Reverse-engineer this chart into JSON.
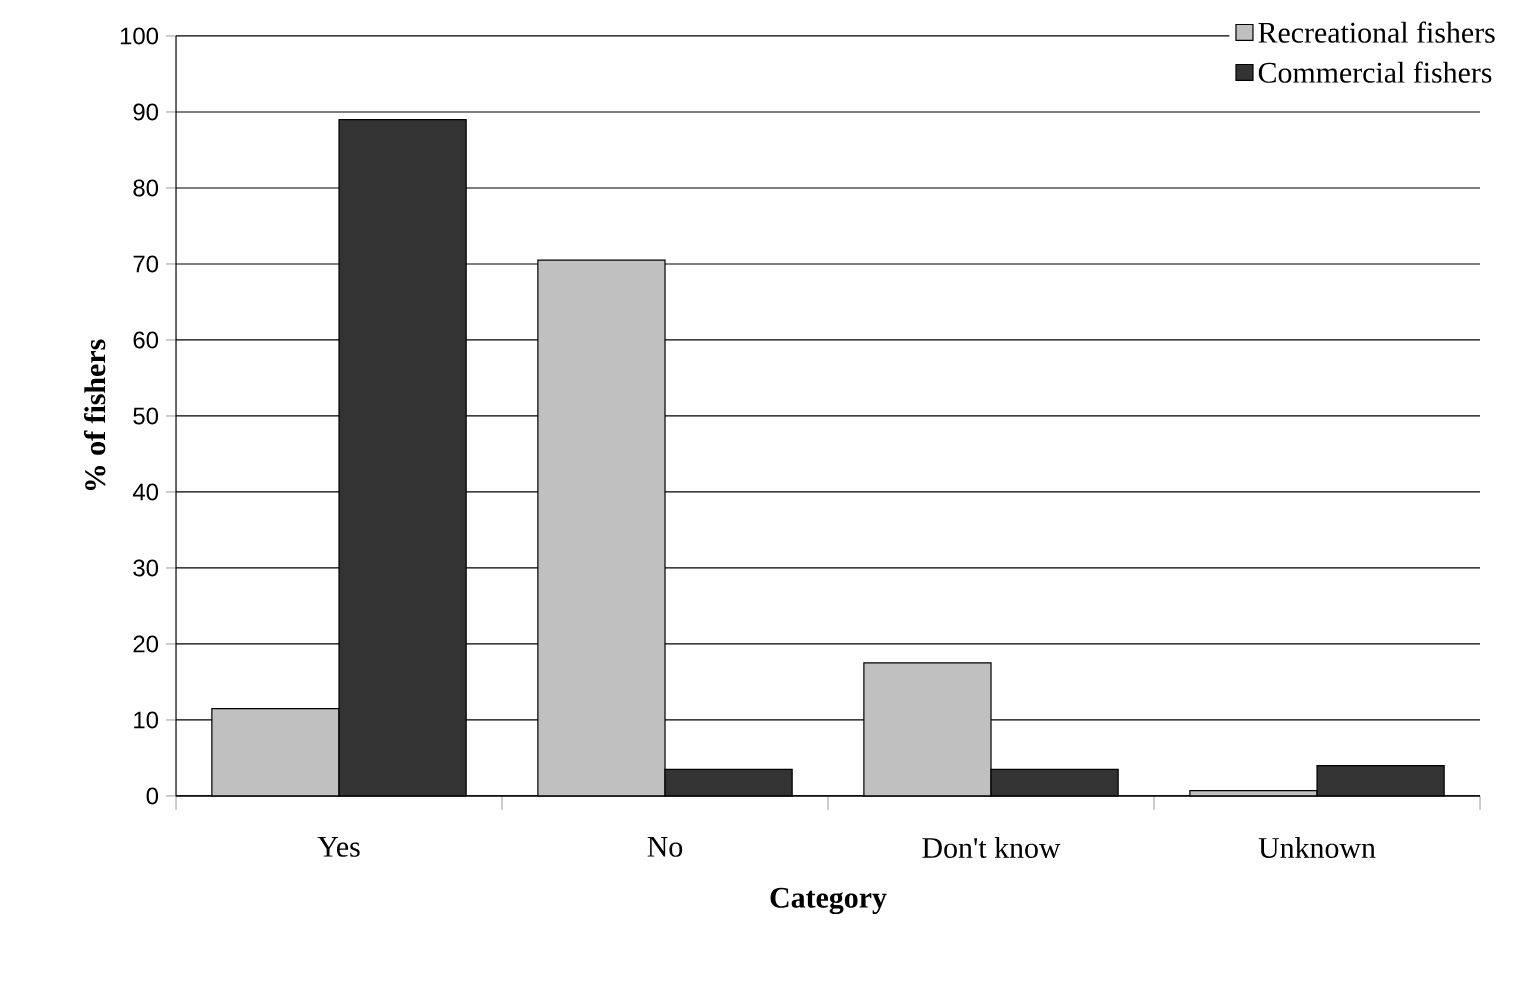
{
  "chart_data": {
    "type": "bar",
    "xlabel": "Category",
    "ylabel": "% of fishers",
    "categories": [
      "Yes",
      "No",
      "Don't know",
      "Unknown"
    ],
    "series": [
      {
        "name": "Recreational fishers",
        "color": "#c0c0c0",
        "values": [
          11.5,
          70.5,
          17.5,
          0.7
        ]
      },
      {
        "name": "Commercial fishers",
        "color": "#333333",
        "values": [
          89,
          3.5,
          3.5,
          4
        ]
      }
    ],
    "ylim": [
      0,
      100
    ],
    "yticks": [
      0,
      10,
      20,
      30,
      40,
      50,
      60,
      70,
      80,
      90,
      100
    ],
    "grid": "y",
    "legend": "top right"
  }
}
